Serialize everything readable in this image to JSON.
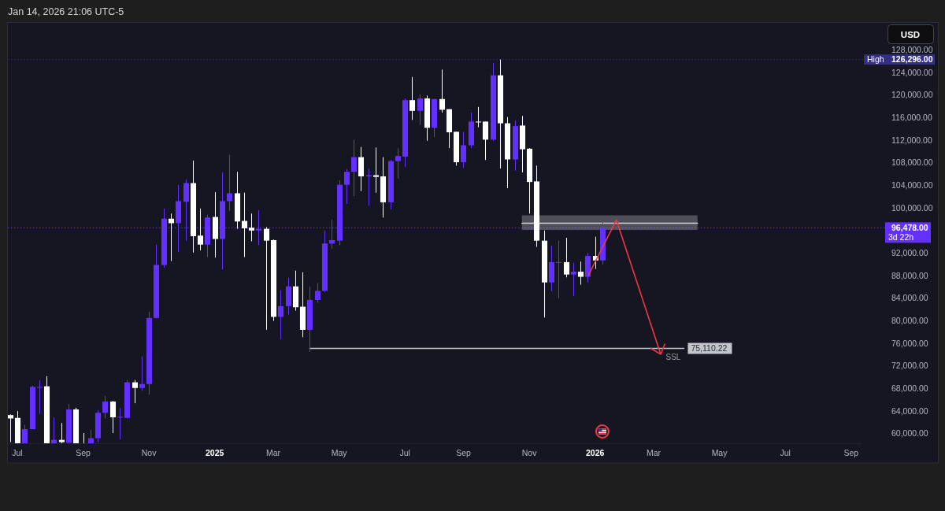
{
  "chart_data": {
    "type": "candlestick",
    "annotations": [
      "Jan 14, 2026 21:06 UTC-5",
      "USD",
      "126,296.00",
      "96,478.00"
    ],
    "x": [
      "2024-06-24",
      "2024-07-01",
      "2024-07-08",
      "2024-07-15",
      "2024-07-22",
      "2024-07-29",
      "2024-08-05",
      "2024-08-12",
      "2024-08-19",
      "2024-08-26",
      "2024-09-02",
      "2024-09-09",
      "2024-09-16",
      "2024-09-23",
      "2024-09-30",
      "2024-10-07",
      "2024-10-14",
      "2024-10-21",
      "2024-10-28",
      "2024-11-04",
      "2024-11-11",
      "2024-11-18",
      "2024-11-25",
      "2024-12-02",
      "2024-12-09",
      "2024-12-16",
      "2024-12-23",
      "2024-12-30",
      "2025-01-06",
      "2025-01-13",
      "2025-01-20",
      "2025-01-27",
      "2025-02-03",
      "2025-02-10",
      "2025-02-17",
      "2025-02-24",
      "2025-03-03",
      "2025-03-10",
      "2025-03-17",
      "2025-03-24",
      "2025-03-31",
      "2025-04-07",
      "2025-04-14",
      "2025-04-21",
      "2025-04-28",
      "2025-05-05",
      "2025-05-12",
      "2025-05-19",
      "2025-05-26",
      "2025-06-02",
      "2025-06-09",
      "2025-06-16",
      "2025-06-23",
      "2025-06-30",
      "2025-07-07",
      "2025-07-14",
      "2025-07-21",
      "2025-07-28",
      "2025-08-04",
      "2025-08-11",
      "2025-08-18",
      "2025-08-25",
      "2025-09-01",
      "2025-09-08",
      "2025-09-15",
      "2025-09-22",
      "2025-09-29",
      "2025-10-06",
      "2025-10-13",
      "2025-10-20",
      "2025-10-27",
      "2025-11-03",
      "2025-11-10",
      "2025-11-17",
      "2025-11-24",
      "2025-12-01",
      "2025-12-08",
      "2025-12-15",
      "2025-12-22",
      "2025-12-29",
      "2026-01-05",
      "2026-01-12"
    ],
    "ohlc": [
      [
        63300,
        63400,
        58500,
        62700
      ],
      [
        62800,
        64000,
        58300,
        58300
      ],
      [
        58300,
        61600,
        58300,
        60800
      ],
      [
        60800,
        68500,
        60800,
        68300
      ],
      [
        68200,
        69500,
        63500,
        68300
      ],
      [
        68400,
        70200,
        58300,
        58300
      ],
      [
        58300,
        62900,
        58300,
        58900
      ],
      [
        58900,
        61900,
        58300,
        58500
      ],
      [
        58400,
        65300,
        58300,
        64300
      ],
      [
        64300,
        64600,
        58300,
        58300
      ],
      [
        58300,
        60100,
        58300,
        58300
      ],
      [
        58300,
        60700,
        58300,
        59200
      ],
      [
        59200,
        64200,
        58500,
        63700
      ],
      [
        63700,
        66700,
        62700,
        65700
      ],
      [
        65700,
        65800,
        60100,
        62900
      ],
      [
        62900,
        64600,
        59000,
        63000
      ],
      [
        62800,
        69500,
        62700,
        69100
      ],
      [
        69100,
        69500,
        65400,
        68100
      ],
      [
        68100,
        73700,
        67600,
        68800
      ],
      [
        68800,
        81600,
        66900,
        80500
      ],
      [
        80500,
        93500,
        80400,
        89900
      ],
      [
        89900,
        99900,
        89400,
        98100
      ],
      [
        98100,
        99000,
        90600,
        97300
      ],
      [
        97300,
        104100,
        92200,
        101200
      ],
      [
        101100,
        105000,
        94200,
        104400
      ],
      [
        104400,
        108400,
        92100,
        95000
      ],
      [
        95100,
        99900,
        92500,
        93500
      ],
      [
        93500,
        98800,
        91300,
        98300
      ],
      [
        98400,
        102800,
        91200,
        94500
      ],
      [
        94500,
        106300,
        89100,
        101200
      ],
      [
        101200,
        109400,
        99500,
        102600
      ],
      [
        102600,
        106400,
        96300,
        97600
      ],
      [
        97700,
        102700,
        91300,
        96400
      ],
      [
        96500,
        99000,
        94100,
        96000
      ],
      [
        96000,
        99600,
        93400,
        96300
      ],
      [
        96300,
        96600,
        78400,
        94200
      ],
      [
        94300,
        94400,
        80000,
        80700
      ],
      [
        80700,
        85400,
        76700,
        82600
      ],
      [
        82600,
        87600,
        81100,
        86100
      ],
      [
        86100,
        88900,
        81800,
        82400
      ],
      [
        82500,
        88600,
        77100,
        78400
      ],
      [
        78400,
        86100,
        74500,
        83700
      ],
      [
        83700,
        86700,
        83200,
        85300
      ],
      [
        85300,
        96000,
        85100,
        93700
      ],
      [
        93700,
        97900,
        92800,
        94300
      ],
      [
        94200,
        104900,
        93400,
        104100
      ],
      [
        104100,
        106900,
        100700,
        106400
      ],
      [
        106400,
        112100,
        102100,
        109000
      ],
      [
        109000,
        110800,
        103000,
        105600
      ],
      [
        105600,
        107000,
        100400,
        105800
      ],
      [
        105800,
        110700,
        102700,
        105500
      ],
      [
        105600,
        109000,
        98300,
        101000
      ],
      [
        101000,
        108500,
        99700,
        108300
      ],
      [
        108300,
        110600,
        105200,
        109200
      ],
      [
        109100,
        119400,
        107300,
        119100
      ],
      [
        119100,
        123200,
        115600,
        117200
      ],
      [
        117200,
        120100,
        114700,
        119400
      ],
      [
        119400,
        119900,
        111900,
        114200
      ],
      [
        114200,
        119300,
        112600,
        119300
      ],
      [
        119300,
        124500,
        116900,
        117400
      ],
      [
        117500,
        117500,
        110600,
        113400
      ],
      [
        113500,
        113500,
        107500,
        108100
      ],
      [
        108100,
        113500,
        107100,
        111100
      ],
      [
        111100,
        116900,
        110600,
        115300
      ],
      [
        115300,
        117900,
        114300,
        115200
      ],
      [
        115300,
        115300,
        108500,
        112100
      ],
      [
        112100,
        125700,
        111900,
        123500
      ],
      [
        123500,
        126296,
        107000,
        115000
      ],
      [
        115000,
        116100,
        103500,
        108600
      ],
      [
        108600,
        115500,
        106600,
        114500
      ],
      [
        114600,
        116300,
        106300,
        110400
      ],
      [
        110500,
        110600,
        99000,
        104600
      ],
      [
        104700,
        107500,
        93100,
        94200
      ],
      [
        94200,
        96000,
        80600,
        86800
      ],
      [
        86800,
        93300,
        85300,
        90400
      ],
      [
        90300,
        94200,
        84000,
        90400
      ],
      [
        90400,
        94700,
        87700,
        88200
      ],
      [
        88200,
        90300,
        84400,
        88700
      ],
      [
        88700,
        90500,
        86400,
        87800
      ],
      [
        87800,
        92000,
        86800,
        91500
      ],
      [
        91500,
        94900,
        89200,
        90700
      ],
      [
        90700,
        97800,
        90000,
        96478
      ]
    ],
    "colors": [
      "#ffffff",
      "#ffffff",
      "#6331ff",
      "#6331ff",
      "#6331ff",
      "#ffffff",
      "#6331ff",
      "#ffffff",
      "#6331ff",
      "#ffffff",
      "#ffffff",
      "#6331ff",
      "#6331ff",
      "#6331ff",
      "#ffffff",
      "#6331ff",
      "#6331ff",
      "#ffffff",
      "#6331ff",
      "#6331ff",
      "#6331ff",
      "#6331ff",
      "#ffffff",
      "#6331ff",
      "#6331ff",
      "#ffffff",
      "#ffffff",
      "#6331ff",
      "#ffffff",
      "#6331ff",
      "#6331ff",
      "#ffffff",
      "#ffffff",
      "#ffffff",
      "#6331ff",
      "#ffffff",
      "#ffffff",
      "#6331ff",
      "#6331ff",
      "#ffffff",
      "#ffffff",
      "#6331ff",
      "#6331ff",
      "#6331ff",
      "#6331ff",
      "#6331ff",
      "#6331ff",
      "#6331ff",
      "#ffffff",
      "#6331ff",
      "#ffffff",
      "#ffffff",
      "#6331ff",
      "#6331ff",
      "#6331ff",
      "#ffffff",
      "#6331ff",
      "#ffffff",
      "#6331ff",
      "#ffffff",
      "#ffffff",
      "#ffffff",
      "#6331ff",
      "#6331ff",
      "#ffffff",
      "#ffffff",
      "#6331ff",
      "#ffffff",
      "#ffffff",
      "#6331ff",
      "#ffffff",
      "#ffffff",
      "#ffffff",
      "#ffffff",
      "#6331ff",
      "#6331ff",
      "#ffffff",
      "#6331ff",
      "#ffffff",
      "#6331ff",
      "#ffffff",
      "#6331ff"
    ],
    "series": [
      {
        "type": "line",
        "x": [
          "2025-10-27",
          "2026-04-13"
        ],
        "values": [
          97300,
          97300
        ],
        "lower": [
          96100,
          96100
        ],
        "upper": [
          98700,
          98700
        ],
        "color": "#d1d4dc"
      },
      {
        "type": "line",
        "name": "SSL",
        "x": [
          "2025-04-07",
          "2026-03-31"
        ],
        "values": [
          75110.22,
          75110.22
        ],
        "value_labels": [
          null,
          "75,110.22"
        ],
        "color": "#c3c5cc"
      }
    ],
    "ref_lines": [
      {
        "axis": "y",
        "value": 126296,
        "label": "High",
        "color": "#34307f",
        "line_style": "dotted"
      },
      {
        "axis": "y",
        "value": 96478,
        "label": "3d 22h",
        "color": "#6331ff",
        "line_style": "dotted"
      }
    ],
    "xlim": [
      "2024-06-22",
      "2026-09-17"
    ],
    "xticks": [
      {
        "value": "2024-07-01",
        "label": "Jul"
      },
      {
        "value": "2024-09-02",
        "label": "Sep"
      },
      {
        "value": "2024-11-04",
        "label": "Nov"
      },
      {
        "value": "2025-01-06",
        "label": "2025"
      },
      {
        "value": "2025-03-03",
        "label": "Mar"
      },
      {
        "value": "2025-05-05",
        "label": "May"
      },
      {
        "value": "2025-07-07",
        "label": "Jul"
      },
      {
        "value": "2025-09-01",
        "label": "Sep"
      },
      {
        "value": "2025-11-03",
        "label": "Nov"
      },
      {
        "value": "2026-01-05",
        "label": "2026"
      },
      {
        "value": "2026-03-02",
        "label": "Mar"
      },
      {
        "value": "2026-05-04",
        "label": "May"
      },
      {
        "value": "2026-07-06",
        "label": "Jul"
      },
      {
        "value": "2026-09-07",
        "label": "Sep"
      }
    ],
    "ylim": [
      58300,
      132800
    ],
    "yticks": [
      {
        "value": 60000,
        "label": "60,000.00"
      },
      {
        "value": 64000,
        "label": "64,000.00"
      },
      {
        "value": 68000,
        "label": "68,000.00"
      },
      {
        "value": 72000,
        "label": "72,000.00"
      },
      {
        "value": 76000,
        "label": "76,000.00"
      },
      {
        "value": 80000,
        "label": "80,000.00"
      },
      {
        "value": 84000,
        "label": "84,000.00"
      },
      {
        "value": 88000,
        "label": "88,000.00"
      },
      {
        "value": 92000,
        "label": "92,000.00"
      },
      {
        "value": 100000,
        "label": "100,000.00"
      },
      {
        "value": 104000,
        "label": "104,000.00"
      },
      {
        "value": 108000,
        "label": "108,000.00"
      },
      {
        "value": 112000,
        "label": "112,000.00"
      },
      {
        "value": 116000,
        "label": "116,000.00"
      },
      {
        "value": 120000,
        "label": "120,000.00"
      },
      {
        "value": 124000,
        "label": "124,000.00"
      },
      {
        "value": 128000,
        "label": "128,000.00"
      }
    ]
  }
}
